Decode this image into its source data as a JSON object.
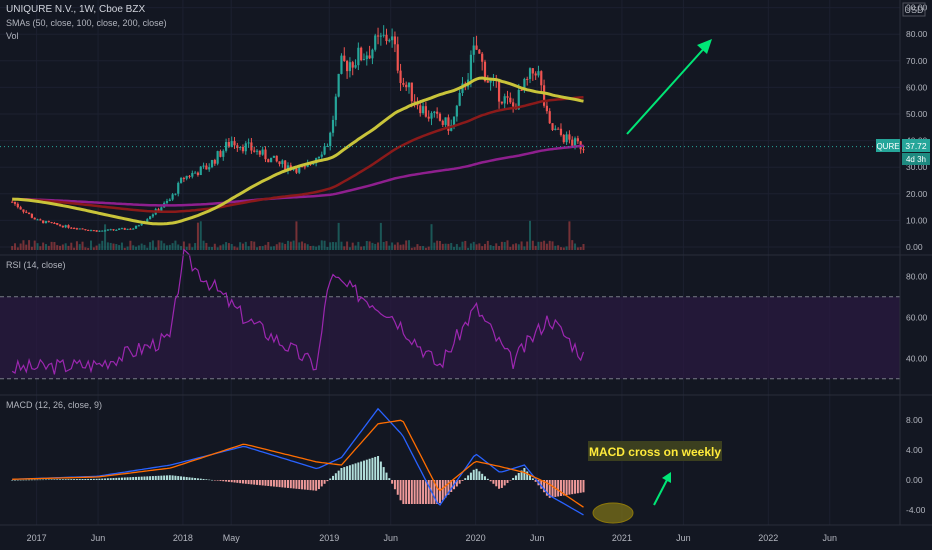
{
  "main_pane": {
    "title": "UNIQURE N.V., 1W, Cboe BZX",
    "indicator1": "SMAs (50, close, 100, close, 200, close)",
    "indicator2": "Vol",
    "currency": "USD",
    "price_ticks": [
      "90.00",
      "80.00",
      "70.00",
      "60.00",
      "50.00",
      "40.00",
      "30.00",
      "20.00",
      "10.00",
      "0.00"
    ],
    "symbol_tag": "QURE",
    "last_price": "37.72",
    "countdown": "4d 3h"
  },
  "rsi_pane": {
    "title": "RSI (14, close)",
    "ticks": [
      "80.00",
      "60.00",
      "40.00"
    ]
  },
  "macd_pane": {
    "title": "MACD (12, 26, close, 9)",
    "ticks": [
      "8.00",
      "4.00",
      "0.00",
      "-4.00"
    ],
    "annotation": "MACD cross on weekly"
  },
  "time_axis": [
    "2017",
    "Jun",
    "2018",
    "May",
    "2019",
    "Jun",
    "2020",
    "Jun",
    "2021",
    "Jun",
    "2022",
    "Jun"
  ],
  "colors": {
    "background": "#131722",
    "up": "#26a69a",
    "down": "#ef5350",
    "sma50": "#c9c43a",
    "sma100": "#8b1a1a",
    "sma200": "#8e1f8e",
    "rsi": "#9c27b0",
    "macd": "#2962ff",
    "signal": "#ff6d00",
    "arrow": "#00e676",
    "annotation_bg": "#3b3f1f",
    "annotation_text": "#ffeb3b"
  },
  "chart_data": [
    {
      "type": "candlestick",
      "title": "UNIQURE N.V., 1W, Cboe BZX",
      "x": [
        "2016-11",
        "2017-01",
        "2017-03",
        "2017-06",
        "2017-09",
        "2017-12",
        "2018-01",
        "2018-03",
        "2018-05",
        "2018-07",
        "2018-09",
        "2018-11",
        "2019-01",
        "2019-02",
        "2019-04",
        "2019-06",
        "2019-07",
        "2019-09",
        "2019-11",
        "2020-01",
        "2020-02",
        "2020-04",
        "2020-06",
        "2020-07",
        "2020-09",
        "2020-10"
      ],
      "close": [
        17,
        10,
        8,
        6,
        7,
        18,
        26,
        30,
        40,
        36,
        31,
        29,
        40,
        68,
        73,
        80,
        62,
        50,
        45,
        75,
        63,
        52,
        68,
        45,
        39,
        37.72
      ],
      "sma50_end": 52,
      "sma100_end": 52,
      "sma200_end": 36,
      "ylim": [
        0,
        90
      ]
    },
    {
      "type": "line",
      "title": "RSI (14, close)",
      "x": [
        "2016-11",
        "2017-06",
        "2017-12",
        "2018-01",
        "2018-06",
        "2018-12",
        "2019-01",
        "2019-06",
        "2019-10",
        "2020-01",
        "2020-04",
        "2020-07",
        "2020-10"
      ],
      "values": [
        35,
        37,
        50,
        90,
        60,
        36,
        80,
        62,
        36,
        65,
        38,
        60,
        40
      ],
      "bands": [
        70,
        30
      ],
      "ylim": [
        25,
        95
      ]
    },
    {
      "type": "line",
      "title": "MACD (12, 26, close, 9)",
      "x": [
        "2016-11",
        "2017-06",
        "2017-12",
        "2018-06",
        "2018-12",
        "2019-02",
        "2019-05",
        "2019-07",
        "2019-10",
        "2020-01",
        "2020-03",
        "2020-05",
        "2020-07",
        "2020-10"
      ],
      "series": [
        {
          "name": "MACD",
          "values": [
            0.1,
            0.5,
            2.0,
            4.5,
            1.5,
            3.0,
            9.5,
            6.0,
            -3.5,
            3.5,
            1.0,
            2.0,
            -2.0,
            -4.8
          ]
        },
        {
          "name": "Signal",
          "values": [
            0.1,
            0.4,
            1.6,
            4.8,
            2.4,
            2.0,
            7.5,
            8.0,
            -1.5,
            2.5,
            1.8,
            1.0,
            -0.5,
            -3.8
          ]
        }
      ],
      "ylim": [
        -6,
        11
      ]
    }
  ]
}
